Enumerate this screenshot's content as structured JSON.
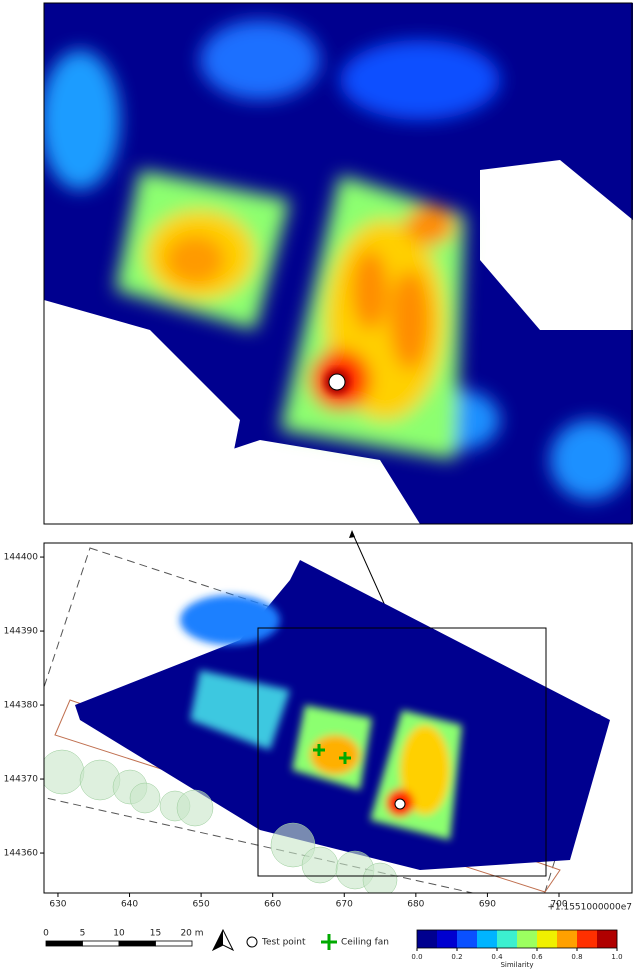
{
  "map": {
    "xlim": [
      628.05,
      710.2
    ],
    "ylim": [
      144354.6,
      144401.9
    ],
    "x_ticks": [
      630,
      640,
      650,
      660,
      670,
      680,
      690,
      700
    ],
    "y_ticks": [
      144400,
      144390,
      144380,
      144370,
      144360
    ],
    "x_offset": "+1.1551000000e7"
  },
  "scale_bar": {
    "ticks": [
      0,
      5,
      10,
      15,
      {
        "value": 20,
        "label": "20 m"
      }
    ]
  },
  "legend": {
    "test_point": "Test point",
    "ceiling_fan": "Ceiling fan"
  },
  "colorbar": {
    "label": "Similarity",
    "colors": [
      "#00008f",
      "#0000d0",
      "#0a50ff",
      "#00b4ff",
      "#3cf0d0",
      "#9cff60",
      "#f0f000",
      "#ffa000",
      "#ff3000",
      "#b00000"
    ],
    "ticks": [
      {
        "value": 0,
        "label": "0.0"
      },
      {
        "value": 0.2,
        "label": "0.2"
      },
      {
        "value": 0.4,
        "label": "0.4"
      },
      {
        "value": 0.6,
        "label": "0.6"
      },
      {
        "value": 0.8,
        "label": "0.8"
      },
      {
        "value": 1,
        "label": "1.0"
      }
    ]
  }
}
